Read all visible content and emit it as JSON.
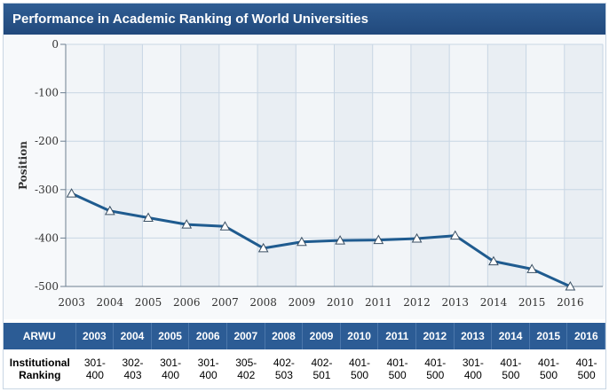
{
  "title": "Performance in Academic Ranking of World Universities",
  "chart_data": {
    "type": "line",
    "x": [
      "2003",
      "2004",
      "2005",
      "2006",
      "2007",
      "2008",
      "2009",
      "2010",
      "2011",
      "2012",
      "2013",
      "2014",
      "2015",
      "2016"
    ],
    "series": [
      {
        "values": [
          -308,
          -344,
          -358,
          -372,
          -376,
          -421,
          -408,
          -405,
          -404,
          -401,
          -395,
          -448,
          -464,
          -500
        ]
      }
    ],
    "ylabel": "Position",
    "yticks": [
      "0",
      "-100",
      "-200",
      "-300",
      "-400",
      "-500"
    ],
    "ylim": [
      -500,
      0
    ],
    "grid": true,
    "colors": {
      "line": "#1f5b8f",
      "marker_fill": "#ffffff",
      "grid": "#c8d6e4"
    }
  },
  "table": {
    "header_label": "ARWU",
    "years": [
      "2003",
      "2004",
      "2005",
      "2006",
      "2007",
      "2008",
      "2009",
      "2010",
      "2011",
      "2012",
      "2013",
      "2014",
      "2015",
      "2016"
    ],
    "row_label_line1": "Institutional",
    "row_label_line2": "Ranking",
    "rankings_line1": [
      "301-",
      "302-",
      "301-",
      "301-",
      "305-",
      "402-",
      "402-",
      "401-",
      "401-",
      "401-",
      "301-",
      "401-",
      "401-",
      "401-"
    ],
    "rankings_line2": [
      "400",
      "403",
      "400",
      "400",
      "402",
      "503",
      "501",
      "500",
      "500",
      "500",
      "400",
      "500",
      "500",
      "500"
    ]
  }
}
